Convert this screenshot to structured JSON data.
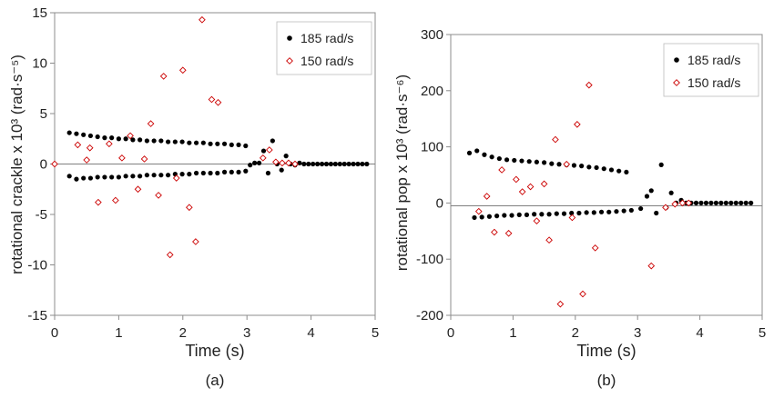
{
  "chart_data": [
    {
      "type": "scatter",
      "panel_label": "(a)",
      "xlabel": "Time (s)",
      "ylabel": "rotational crackle x 10³ (rad·s⁻⁵)",
      "xlim": [
        0,
        5
      ],
      "ylim": [
        -15,
        15
      ],
      "xticks": [
        0,
        1,
        2,
        3,
        4,
        5
      ],
      "yticks": [
        -15,
        -10,
        -5,
        0,
        5,
        10,
        15
      ],
      "grid": false,
      "legend_position": "top-right",
      "reference_line_y": 0,
      "series": [
        {
          "name": "185 rad/s",
          "marker": "filled-circle",
          "color": "#000000",
          "x": [
            0.23,
            0.34,
            0.45,
            0.56,
            0.67,
            0.78,
            0.89,
            1.0,
            1.11,
            1.22,
            1.33,
            1.44,
            1.55,
            1.66,
            1.77,
            1.88,
            1.99,
            2.1,
            2.21,
            2.32,
            2.43,
            2.54,
            2.65,
            2.76,
            2.87,
            2.98,
            0.23,
            0.34,
            0.45,
            0.56,
            0.67,
            0.78,
            0.89,
            1.0,
            1.11,
            1.22,
            1.33,
            1.44,
            1.55,
            1.66,
            1.77,
            1.88,
            1.99,
            2.1,
            2.21,
            2.32,
            2.43,
            2.54,
            2.65,
            2.76,
            2.87,
            2.98,
            3.05,
            3.12,
            3.19,
            3.26,
            3.33,
            3.4,
            3.47,
            3.54,
            3.61,
            3.68,
            3.75,
            3.82,
            3.89,
            3.96,
            4.03,
            4.1,
            4.17,
            4.24,
            4.31,
            4.38,
            4.45,
            4.52,
            4.59,
            4.66,
            4.73,
            4.8,
            4.87
          ],
          "y": [
            3.1,
            3.0,
            2.9,
            2.8,
            2.7,
            2.6,
            2.6,
            2.5,
            2.5,
            2.4,
            2.4,
            2.3,
            2.3,
            2.3,
            2.2,
            2.2,
            2.2,
            2.1,
            2.1,
            2.1,
            2.0,
            2.0,
            2.0,
            1.9,
            1.9,
            1.8,
            -1.2,
            -1.5,
            -1.4,
            -1.4,
            -1.3,
            -1.3,
            -1.3,
            -1.3,
            -1.2,
            -1.2,
            -1.2,
            -1.1,
            -1.1,
            -1.1,
            -1.1,
            -1.0,
            -1.0,
            -1.0,
            -0.9,
            -0.9,
            -0.9,
            -0.9,
            -0.8,
            -0.8,
            -0.8,
            -0.7,
            -0.1,
            0.1,
            0.1,
            1.3,
            -0.9,
            2.3,
            0.0,
            -0.6,
            0.8,
            0.0,
            -0.1,
            0.1,
            0.0,
            0.0,
            0.0,
            0.0,
            0.0,
            0.0,
            0.0,
            0.0,
            0.0,
            0.0,
            0.0,
            0.0,
            0.0,
            0.0,
            0.0
          ]
        },
        {
          "name": "150 rad/s",
          "marker": "open-diamond",
          "color": "#cc0000",
          "x": [
            0.0,
            0.36,
            0.5,
            0.55,
            0.68,
            0.85,
            0.95,
            1.05,
            1.18,
            1.3,
            1.4,
            1.5,
            1.62,
            1.7,
            1.8,
            1.9,
            2.0,
            2.1,
            2.2,
            2.3,
            2.45,
            2.55,
            3.25,
            3.35,
            3.45,
            3.55,
            3.65,
            3.75
          ],
          "y": [
            0.0,
            1.9,
            0.4,
            1.6,
            -3.8,
            2.0,
            -3.6,
            0.6,
            2.8,
            -2.5,
            0.5,
            4.0,
            -3.1,
            8.7,
            -9.0,
            -1.4,
            9.3,
            -4.3,
            -7.7,
            14.3,
            6.4,
            6.1,
            0.6,
            1.4,
            0.2,
            0.1,
            0.1,
            0.0
          ]
        }
      ]
    },
    {
      "type": "scatter",
      "panel_label": "(b)",
      "xlabel": "Time (s)",
      "ylabel": "rotational pop x 10³ (rad·s⁻⁶)",
      "xlim": [
        0,
        5
      ],
      "ylim": [
        -200,
        300
      ],
      "xticks": [
        0,
        1,
        2,
        3,
        4,
        5
      ],
      "yticks": [
        -200,
        -100,
        0,
        100,
        200,
        300
      ],
      "grid": false,
      "legend_position": "top-right",
      "reference_line_y": -5,
      "series": [
        {
          "name": "185 rad/s",
          "marker": "filled-circle",
          "color": "#000000",
          "x": [
            0.3,
            0.42,
            0.54,
            0.66,
            0.78,
            0.9,
            1.02,
            1.14,
            1.26,
            1.38,
            1.5,
            1.62,
            1.74,
            1.86,
            1.98,
            2.1,
            2.22,
            2.34,
            2.46,
            2.58,
            2.7,
            2.82,
            0.38,
            0.5,
            0.62,
            0.74,
            0.86,
            0.98,
            1.1,
            1.22,
            1.34,
            1.46,
            1.58,
            1.7,
            1.82,
            1.94,
            2.06,
            2.18,
            2.3,
            2.42,
            2.54,
            2.66,
            2.78,
            2.9,
            3.05,
            3.15,
            3.22,
            3.3,
            3.38,
            3.46,
            3.54,
            3.62,
            3.7,
            3.78,
            3.86,
            3.94,
            4.02,
            4.1,
            4.18,
            4.26,
            4.34,
            4.42,
            4.5,
            4.58,
            4.66,
            4.74,
            4.82
          ],
          "y": [
            89,
            93,
            86,
            82,
            79,
            77,
            76,
            75,
            74,
            73,
            72,
            70,
            69,
            68,
            67,
            66,
            64,
            63,
            61,
            59,
            57,
            55,
            -26,
            -25,
            -24,
            -23,
            -22,
            -22,
            -21,
            -21,
            -20,
            -20,
            -20,
            -19,
            -19,
            -18,
            -18,
            -17,
            -17,
            -16,
            -16,
            -15,
            -14,
            -13,
            -10,
            12,
            22,
            -18,
            68,
            -8,
            18,
            0,
            5,
            0,
            0,
            0,
            0,
            0,
            0,
            0,
            0,
            0,
            0,
            0,
            0,
            0,
            0
          ]
        },
        {
          "name": "150 rad/s",
          "marker": "open-diamond",
          "color": "#cc0000",
          "x": [
            0.45,
            0.58,
            0.7,
            0.82,
            0.93,
            1.05,
            1.15,
            1.28,
            1.38,
            1.5,
            1.58,
            1.68,
            1.76,
            1.86,
            1.95,
            2.03,
            2.12,
            2.22,
            2.32,
            3.22,
            3.45,
            3.6,
            3.72,
            3.82
          ],
          "y": [
            -15,
            12,
            -52,
            59,
            -54,
            42,
            20,
            29,
            -32,
            34,
            -66,
            113,
            -180,
            69,
            -26,
            140,
            -162,
            210,
            -80,
            -112,
            -8,
            -2,
            0,
            0
          ]
        }
      ]
    }
  ]
}
